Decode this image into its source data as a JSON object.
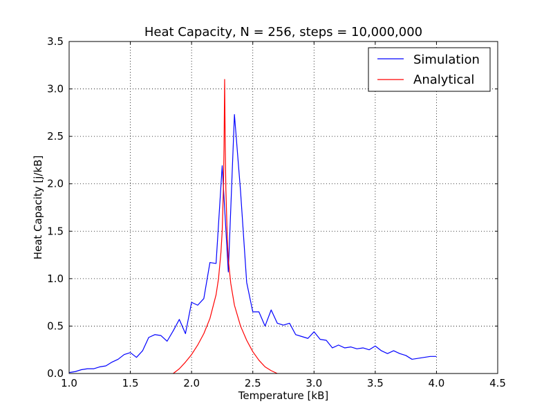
{
  "chart_data": {
    "type": "line",
    "title": "Heat Capacity, N = 256, steps = 10,000,000",
    "xlabel": "Temperature [kB]",
    "ylabel": "Heat Capacity [j/kB]",
    "xlim": [
      1.0,
      4.5
    ],
    "ylim": [
      0.0,
      3.5
    ],
    "x_ticks": [
      "1.0",
      "1.5",
      "2.0",
      "2.5",
      "3.0",
      "3.5",
      "4.0",
      "4.5"
    ],
    "y_ticks": [
      "0.0",
      "0.5",
      "1.0",
      "1.5",
      "2.0",
      "2.5",
      "3.0",
      "3.5"
    ],
    "grid": true,
    "legend_position": "top-right",
    "series": [
      {
        "name": "Simulation",
        "color": "#0000ff",
        "x": [
          1.0,
          1.05,
          1.1,
          1.15,
          1.2,
          1.25,
          1.3,
          1.35,
          1.4,
          1.45,
          1.5,
          1.55,
          1.6,
          1.65,
          1.7,
          1.75,
          1.8,
          1.85,
          1.9,
          1.95,
          2.0,
          2.05,
          2.1,
          2.15,
          2.2,
          2.25,
          2.3,
          2.35,
          2.4,
          2.45,
          2.5,
          2.55,
          2.6,
          2.65,
          2.7,
          2.75,
          2.8,
          2.85,
          2.9,
          2.95,
          3.0,
          3.05,
          3.1,
          3.15,
          3.2,
          3.25,
          3.3,
          3.35,
          3.4,
          3.45,
          3.5,
          3.55,
          3.6,
          3.65,
          3.7,
          3.75,
          3.8,
          3.85,
          3.9,
          3.95,
          4.0
        ],
        "y": [
          0.01,
          0.02,
          0.04,
          0.05,
          0.05,
          0.07,
          0.08,
          0.12,
          0.15,
          0.2,
          0.22,
          0.17,
          0.24,
          0.38,
          0.41,
          0.4,
          0.34,
          0.45,
          0.57,
          0.42,
          0.75,
          0.72,
          0.79,
          1.17,
          1.16,
          2.19,
          1.07,
          2.73,
          1.92,
          0.96,
          0.65,
          0.65,
          0.5,
          0.67,
          0.53,
          0.51,
          0.53,
          0.41,
          0.39,
          0.37,
          0.44,
          0.36,
          0.35,
          0.27,
          0.3,
          0.27,
          0.28,
          0.26,
          0.27,
          0.25,
          0.29,
          0.24,
          0.21,
          0.24,
          0.21,
          0.19,
          0.15,
          0.16,
          0.17,
          0.18,
          0.18
        ]
      },
      {
        "name": "Analytical",
        "color": "#ff0000",
        "x": [
          1.85,
          1.9,
          1.95,
          2.0,
          2.05,
          2.1,
          2.15,
          2.2,
          2.22,
          2.24,
          2.25,
          2.26,
          2.265,
          2.27,
          2.275,
          2.28,
          2.29,
          2.3,
          2.32,
          2.35,
          2.4,
          2.45,
          2.5,
          2.55,
          2.6,
          2.65,
          2.7
        ],
        "y": [
          0.0,
          0.05,
          0.12,
          0.2,
          0.3,
          0.42,
          0.58,
          0.83,
          1.0,
          1.28,
          1.5,
          1.95,
          2.4,
          3.1,
          2.4,
          1.95,
          1.5,
          1.2,
          0.95,
          0.72,
          0.5,
          0.35,
          0.23,
          0.14,
          0.07,
          0.03,
          0.0
        ]
      }
    ]
  }
}
